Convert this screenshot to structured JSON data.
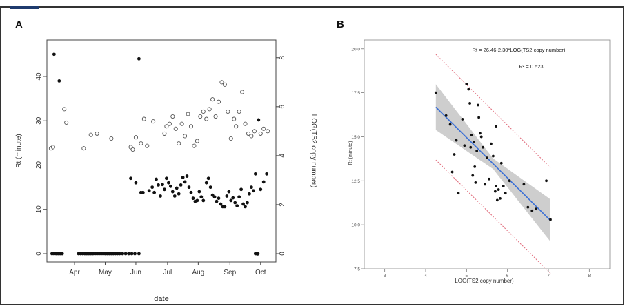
{
  "figure": {
    "panel_a_letter": "A",
    "panel_b_letter": "B"
  },
  "colors": {
    "frame": "#333333",
    "accent_bar": "#1f3b6e",
    "points": "#111111",
    "fit_line": "#3a6fd6",
    "confidence_band": "#bdbdbd",
    "prediction_band": "#e06a7a",
    "axis": "#444444"
  },
  "chart_data": [
    {
      "type": "scatter",
      "panel": "A",
      "xlabel": "date",
      "ylabel": "Rt (minute)",
      "y2label": "LOG(TS2 copy number)",
      "x_tick_labels": [
        "Apr",
        "May",
        "Jun",
        "Jul",
        "Aug",
        "Sep",
        "Oct"
      ],
      "xlim": [
        "2019-03-10",
        "2019-10-20"
      ],
      "ylim": [
        0,
        47
      ],
      "y_ticks": [
        0,
        10,
        20,
        30,
        40
      ],
      "y2lim": [
        0,
        8.5
      ],
      "y2_ticks": [
        0,
        2,
        4,
        6,
        8
      ],
      "grid": false,
      "series": [
        {
          "marker": "filled circle",
          "axis": "left",
          "points": [
            [
              "2019-03-17",
              45
            ],
            [
              "2019-03-22",
              39
            ],
            [
              "2019-03-15",
              0
            ],
            [
              "2019-03-17",
              0
            ],
            [
              "2019-03-19",
              0
            ],
            [
              "2019-03-21",
              0
            ],
            [
              "2019-03-23",
              0
            ],
            [
              "2019-03-25",
              0
            ],
            [
              "2019-04-10",
              0
            ],
            [
              "2019-04-12",
              0
            ],
            [
              "2019-04-14",
              0
            ],
            [
              "2019-04-16",
              0
            ],
            [
              "2019-04-18",
              0
            ],
            [
              "2019-04-20",
              0
            ],
            [
              "2019-04-22",
              0
            ],
            [
              "2019-04-24",
              0
            ],
            [
              "2019-04-26",
              0
            ],
            [
              "2019-04-28",
              0
            ],
            [
              "2019-04-30",
              0
            ],
            [
              "2019-05-02",
              0
            ],
            [
              "2019-05-04",
              0
            ],
            [
              "2019-05-06",
              0
            ],
            [
              "2019-05-08",
              0
            ],
            [
              "2019-05-10",
              0
            ],
            [
              "2019-05-12",
              0
            ],
            [
              "2019-05-14",
              0
            ],
            [
              "2019-05-16",
              0
            ],
            [
              "2019-05-18",
              0
            ],
            [
              "2019-05-20",
              0
            ],
            [
              "2019-05-23",
              0
            ],
            [
              "2019-05-26",
              0
            ],
            [
              "2019-05-29",
              0
            ],
            [
              "2019-06-01",
              0
            ],
            [
              "2019-06-04",
              0
            ],
            [
              "2019-06-08",
              0
            ],
            [
              "2019-09-30",
              0
            ],
            [
              "2019-10-02",
              0
            ],
            [
              "2019-05-31",
              17
            ],
            [
              "2019-06-05",
              16
            ],
            [
              "2019-06-08",
              44
            ],
            [
              "2019-06-10",
              13.8
            ],
            [
              "2019-06-12",
              13.8
            ],
            [
              "2019-06-18",
              14.2
            ],
            [
              "2019-06-21",
              15
            ],
            [
              "2019-06-23",
              13.8
            ],
            [
              "2019-06-25",
              16.8
            ],
            [
              "2019-06-27",
              15.5
            ],
            [
              "2019-06-29",
              13
            ],
            [
              "2019-07-01",
              15.6
            ],
            [
              "2019-07-03",
              14.5
            ],
            [
              "2019-07-05",
              17
            ],
            [
              "2019-07-07",
              16
            ],
            [
              "2019-07-09",
              15.2
            ],
            [
              "2019-07-11",
              14
            ],
            [
              "2019-07-13",
              13
            ],
            [
              "2019-07-15",
              14.8
            ],
            [
              "2019-07-17",
              13.5
            ],
            [
              "2019-07-19",
              15.5
            ],
            [
              "2019-07-21",
              17.2
            ],
            [
              "2019-07-23",
              16.2
            ],
            [
              "2019-07-25",
              17.5
            ],
            [
              "2019-07-27",
              15
            ],
            [
              "2019-07-29",
              13.8
            ],
            [
              "2019-07-31",
              12.5
            ],
            [
              "2019-08-02",
              11.8
            ],
            [
              "2019-08-04",
              12
            ],
            [
              "2019-08-06",
              14
            ],
            [
              "2019-08-08",
              12.8
            ],
            [
              "2019-08-10",
              12
            ],
            [
              "2019-08-13",
              16
            ],
            [
              "2019-08-15",
              17
            ],
            [
              "2019-08-17",
              15
            ],
            [
              "2019-08-19",
              13.2
            ],
            [
              "2019-08-21",
              12.8
            ],
            [
              "2019-08-23",
              11.8
            ],
            [
              "2019-08-25",
              12.5
            ],
            [
              "2019-08-27",
              11.2
            ],
            [
              "2019-08-29",
              10.6
            ],
            [
              "2019-08-31",
              10.6
            ],
            [
              "2019-09-02",
              13
            ],
            [
              "2019-09-04",
              14
            ],
            [
              "2019-09-06",
              12
            ],
            [
              "2019-09-08",
              12.6
            ],
            [
              "2019-09-10",
              11.5
            ],
            [
              "2019-09-12",
              10.8
            ],
            [
              "2019-09-14",
              12.8
            ],
            [
              "2019-09-16",
              14.5
            ],
            [
              "2019-09-18",
              11.2
            ],
            [
              "2019-09-20",
              10.6
            ],
            [
              "2019-09-22",
              11.5
            ],
            [
              "2019-09-24",
              13.5
            ],
            [
              "2019-09-26",
              15
            ],
            [
              "2019-09-28",
              14.2
            ],
            [
              "2019-09-30",
              18
            ],
            [
              "2019-10-03",
              30.2
            ],
            [
              "2019-10-05",
              14.5
            ],
            [
              "2019-10-08",
              16.2
            ],
            [
              "2019-10-11",
              18
            ]
          ]
        },
        {
          "marker": "open circle",
          "axis": "right",
          "points": [
            [
              "2019-03-14",
              4.3
            ],
            [
              "2019-03-16",
              4.35
            ],
            [
              "2019-03-27",
              5.9
            ],
            [
              "2019-03-29",
              5.35
            ],
            [
              "2019-04-15",
              4.3
            ],
            [
              "2019-04-22",
              4.85
            ],
            [
              "2019-04-28",
              4.9
            ],
            [
              "2019-05-12",
              4.7
            ],
            [
              "2019-05-31",
              4.35
            ],
            [
              "2019-06-02",
              4.25
            ],
            [
              "2019-06-05",
              4.75
            ],
            [
              "2019-06-10",
              4.5
            ],
            [
              "2019-06-13",
              5.5
            ],
            [
              "2019-06-16",
              4.4
            ],
            [
              "2019-06-22",
              5.4
            ],
            [
              "2019-07-03",
              4.9
            ],
            [
              "2019-07-05",
              5.2
            ],
            [
              "2019-07-08",
              5.3
            ],
            [
              "2019-07-11",
              5.6
            ],
            [
              "2019-07-14",
              5.1
            ],
            [
              "2019-07-17",
              4.5
            ],
            [
              "2019-07-20",
              5.3
            ],
            [
              "2019-07-23",
              4.8
            ],
            [
              "2019-07-26",
              5.7
            ],
            [
              "2019-07-29",
              5.2
            ],
            [
              "2019-08-01",
              4.4
            ],
            [
              "2019-08-04",
              4.6
            ],
            [
              "2019-08-07",
              5.6
            ],
            [
              "2019-08-10",
              5.8
            ],
            [
              "2019-08-13",
              5.5
            ],
            [
              "2019-08-16",
              5.9
            ],
            [
              "2019-08-19",
              6.3
            ],
            [
              "2019-08-22",
              5.6
            ],
            [
              "2019-08-25",
              6.2
            ],
            [
              "2019-08-28",
              7
            ],
            [
              "2019-08-31",
              6.9
            ],
            [
              "2019-09-03",
              5.8
            ],
            [
              "2019-09-06",
              4.7
            ],
            [
              "2019-09-09",
              5.5
            ],
            [
              "2019-09-11",
              5.2
            ],
            [
              "2019-09-14",
              5.8
            ],
            [
              "2019-09-17",
              6.6
            ],
            [
              "2019-09-20",
              5.3
            ],
            [
              "2019-09-23",
              4.9
            ],
            [
              "2019-09-26",
              4.8
            ],
            [
              "2019-09-29",
              5
            ],
            [
              "2019-10-02",
              0
            ],
            [
              "2019-10-05",
              4.9
            ],
            [
              "2019-10-08",
              5.1
            ],
            [
              "2019-10-12",
              5
            ]
          ]
        }
      ]
    },
    {
      "type": "scatter",
      "panel": "B",
      "xlabel": "LOG(TS2 copy number)",
      "ylabel": "Rt (minute)",
      "xlim": [
        2.5,
        8.5
      ],
      "ylim": [
        7.5,
        20.5
      ],
      "x_ticks": [
        3,
        4,
        5,
        6,
        7,
        8
      ],
      "y_ticks": [
        7.5,
        10.0,
        12.5,
        15.0,
        17.5,
        20.0
      ],
      "y_tick_labels": [
        "7.5",
        "10.0",
        "12.5",
        "15.0",
        "17.5",
        "20.0"
      ],
      "grid": false,
      "annotations": [
        "Rt = 26.46-2.30*LOG(TS2 copy number)",
        "R² = 0.523"
      ],
      "fit_line": {
        "intercept": 26.46,
        "slope": -2.3,
        "x_range": [
          4.25,
          7.05
        ]
      },
      "confidence_band_half_width": [
        1.3,
        0.3,
        1.2
      ],
      "prediction_band_half_width": 3.0,
      "points": [
        [
          4.25,
          17.5
        ],
        [
          4.5,
          16.2
        ],
        [
          4.6,
          15.7
        ],
        [
          4.65,
          13.0
        ],
        [
          4.7,
          14.0
        ],
        [
          4.75,
          14.8
        ],
        [
          4.8,
          11.8
        ],
        [
          4.9,
          16.0
        ],
        [
          4.95,
          14.5
        ],
        [
          5.0,
          18.0
        ],
        [
          5.05,
          17.7
        ],
        [
          5.08,
          16.9
        ],
        [
          5.1,
          14.4
        ],
        [
          5.12,
          15.1
        ],
        [
          5.15,
          12.8
        ],
        [
          5.18,
          14.7
        ],
        [
          5.2,
          13.3
        ],
        [
          5.22,
          12.4
        ],
        [
          5.25,
          14.2
        ],
        [
          5.28,
          16.8
        ],
        [
          5.3,
          16.1
        ],
        [
          5.33,
          15.2
        ],
        [
          5.36,
          15.0
        ],
        [
          5.4,
          14.4
        ],
        [
          5.45,
          12.3
        ],
        [
          5.5,
          13.8
        ],
        [
          5.55,
          12.6
        ],
        [
          5.6,
          14.6
        ],
        [
          5.65,
          13.9
        ],
        [
          5.7,
          11.9
        ],
        [
          5.72,
          12.2
        ],
        [
          5.75,
          11.4
        ],
        [
          5.78,
          12.0
        ],
        [
          5.82,
          11.5
        ],
        [
          5.85,
          13.5
        ],
        [
          5.9,
          12.2
        ],
        [
          5.95,
          11.8
        ],
        [
          6.05,
          12.5
        ],
        [
          6.4,
          12.3
        ],
        [
          6.5,
          11.0
        ],
        [
          6.6,
          10.8
        ],
        [
          6.7,
          10.9
        ],
        [
          6.95,
          12.5
        ],
        [
          7.05,
          10.3
        ],
        [
          5.72,
          15.6
        ]
      ]
    }
  ]
}
